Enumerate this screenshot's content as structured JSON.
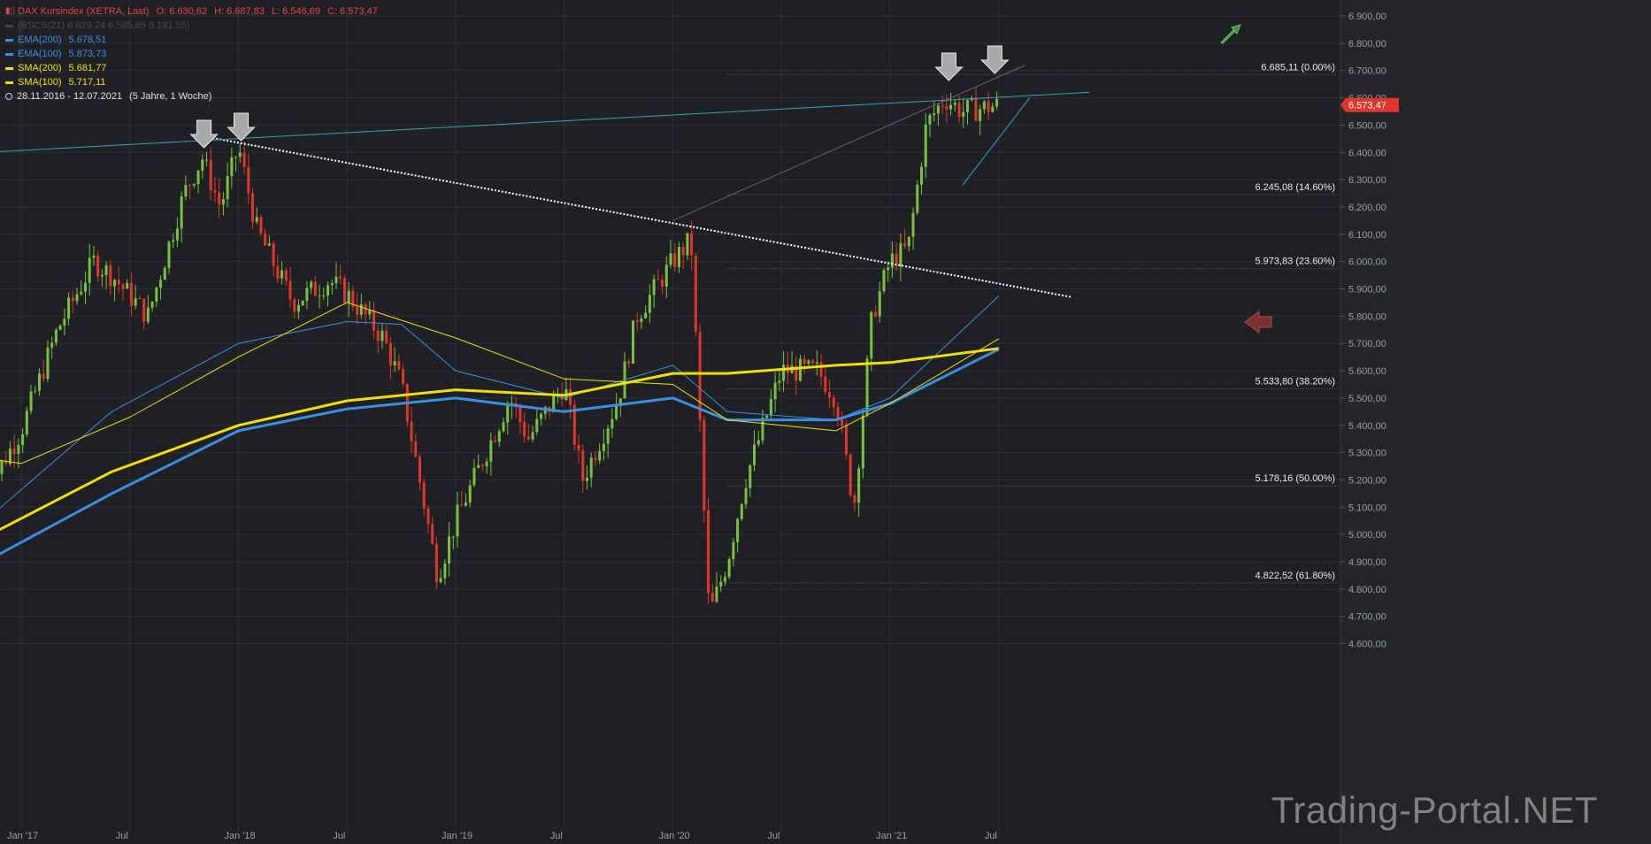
{
  "legend": {
    "instrument": "DAX Kursindex (XETRA, Last)",
    "open": "O: 6.630,62",
    "high": "H: 6.687,83",
    "low": "L: 6.546,69",
    "close": "C: 6.573,47",
    "faded_line": "(BSCS(21) 6.629,24  6.585,65  6.181,55)",
    "indicators": [
      {
        "name": "EMA(200)",
        "value": "5.678,51",
        "color": "#3c8fe0"
      },
      {
        "name": "EMA(100)",
        "value": "5.873,73",
        "color": "#3c8fe0"
      },
      {
        "name": "SMA(200)",
        "value": "5.681,77",
        "color": "#f0e000"
      },
      {
        "name": "SMA(100)",
        "value": "5.717,11",
        "color": "#f0e000"
      }
    ],
    "range": "28.11.2016 - 12.07.2021",
    "period": "(5 Jahre, 1 Woche)"
  },
  "current_price": "6.573,47",
  "watermark": "Trading-Portal.NET",
  "colors": {
    "up": "#7ac142",
    "down": "#e0362c",
    "bg": "#1e2023",
    "grid": "#2c2f33"
  },
  "chart_data": {
    "type": "candlestick",
    "y_axis": {
      "min": 4550,
      "max": 6950,
      "ticks": [
        "6.900,00",
        "6.800,00",
        "6.700,00",
        "6.600,00",
        "6.500,00",
        "6.400,00",
        "6.300,00",
        "6.200,00",
        "6.100,00",
        "6.000,00",
        "5.900,00",
        "5.800,00",
        "5.700,00",
        "5.600,00",
        "5.500,00",
        "5.400,00",
        "5.300,00",
        "5.200,00",
        "5.100,00",
        "5.000,00",
        "4.900,00",
        "4.800,00",
        "4.700,00",
        "4.600,00"
      ],
      "tick_values": [
        6900,
        6800,
        6700,
        6600,
        6500,
        6400,
        6300,
        6200,
        6100,
        6000,
        5900,
        5800,
        5700,
        5600,
        5500,
        5400,
        5300,
        5200,
        5100,
        5000,
        4900,
        4800,
        4700,
        4600
      ]
    },
    "x_axis": {
      "labels": [
        "Jan '17",
        "Jul",
        "Jan '18",
        "Jul",
        "Jan '19",
        "Jul",
        "Jan '20",
        "Jul",
        "Jan '21",
        "Jul"
      ],
      "dates": [
        "2017-01",
        "2017-07",
        "2018-01",
        "2018-07",
        "2019-01",
        "2019-07",
        "2020-01",
        "2020-07",
        "2021-01",
        "2021-07"
      ]
    },
    "fib_levels": [
      {
        "label": "6.685,11 (0.00%)",
        "value": 6685.11
      },
      {
        "label": "6.245,08 (14.60%)",
        "value": 6245.08
      },
      {
        "label": "5.973,83 (23.60%)",
        "value": 5973.83
      },
      {
        "label": "5.533,80 (38.20%)",
        "value": 5533.8
      },
      {
        "label": "5.178,16 (50.00%)",
        "value": 5178.16
      },
      {
        "label": "4.822,52 (61.80%)",
        "value": 4822.52
      }
    ],
    "price_path": [
      [
        "2016-11",
        5150
      ],
      [
        "2017-01",
        5380
      ],
      [
        "2017-03",
        5750
      ],
      [
        "2017-05",
        6000
      ],
      [
        "2017-06",
        5950
      ],
      [
        "2017-08",
        5800
      ],
      [
        "2017-10",
        6250
      ],
      [
        "2017-11",
        6380
      ],
      [
        "2017-12",
        6200
      ],
      [
        "2018-01",
        6420
      ],
      [
        "2018-02",
        6120
      ],
      [
        "2018-04",
        5850
      ],
      [
        "2018-06",
        5930
      ],
      [
        "2018-07",
        5880
      ],
      [
        "2018-09",
        5720
      ],
      [
        "2018-10",
        5550
      ],
      [
        "2018-11",
        5200
      ],
      [
        "2018-12",
        4850
      ],
      [
        "2019-01",
        5050
      ],
      [
        "2019-03",
        5350
      ],
      [
        "2019-04",
        5500
      ],
      [
        "2019-05",
        5350
      ],
      [
        "2019-07",
        5550
      ],
      [
        "2019-08",
        5200
      ],
      [
        "2019-10",
        5500
      ],
      [
        "2019-11",
        5800
      ],
      [
        "2020-01",
        6000
      ],
      [
        "2020-02",
        6080
      ],
      [
        "2020-03",
        4700
      ],
      [
        "2020-04",
        4900
      ],
      [
        "2020-05",
        5200
      ],
      [
        "2020-06",
        5400
      ],
      [
        "2020-07",
        5600
      ],
      [
        "2020-09",
        5600
      ],
      [
        "2020-10",
        5500
      ],
      [
        "2020-11",
        5100
      ],
      [
        "2020-12",
        5800
      ],
      [
        "2021-01",
        6000
      ],
      [
        "2021-02",
        6050
      ],
      [
        "2021-03",
        6500
      ],
      [
        "2021-04",
        6600
      ],
      [
        "2021-05",
        6550
      ],
      [
        "2021-07",
        6573
      ]
    ],
    "series": [
      {
        "name": "EMA(200)",
        "color": "#3c8fe0",
        "width": 3,
        "points": [
          [
            "2016-11",
            4900
          ],
          [
            "2017-06",
            5150
          ],
          [
            "2018-01",
            5380
          ],
          [
            "2018-07",
            5460
          ],
          [
            "2019-01",
            5500
          ],
          [
            "2019-07",
            5450
          ],
          [
            "2020-01",
            5500
          ],
          [
            "2020-04",
            5420
          ],
          [
            "2020-10",
            5420
          ],
          [
            "2021-01",
            5480
          ],
          [
            "2021-07",
            5678.51
          ]
        ]
      },
      {
        "name": "EMA(100)",
        "color": "#3c8fe0",
        "width": 1,
        "points": [
          [
            "2016-11",
            5050
          ],
          [
            "2017-06",
            5450
          ],
          [
            "2018-01",
            5700
          ],
          [
            "2018-07",
            5780
          ],
          [
            "2018-10",
            5770
          ],
          [
            "2019-01",
            5600
          ],
          [
            "2019-07",
            5500
          ],
          [
            "2020-01",
            5620
          ],
          [
            "2020-04",
            5450
          ],
          [
            "2020-10",
            5420
          ],
          [
            "2021-01",
            5500
          ],
          [
            "2021-07",
            5873.73
          ]
        ]
      },
      {
        "name": "SMA(200)",
        "color": "#f0e000",
        "width": 3,
        "points": [
          [
            "2016-11",
            4990
          ],
          [
            "2017-06",
            5230
          ],
          [
            "2018-01",
            5400
          ],
          [
            "2018-07",
            5490
          ],
          [
            "2019-01",
            5530
          ],
          [
            "2019-07",
            5510
          ],
          [
            "2020-01",
            5590
          ],
          [
            "2020-04",
            5590
          ],
          [
            "2020-10",
            5620
          ],
          [
            "2021-01",
            5630
          ],
          [
            "2021-07",
            5681.77
          ]
        ]
      },
      {
        "name": "SMA(100)",
        "color": "#f0e000",
        "width": 1,
        "points": [
          [
            "2016-11",
            5280
          ],
          [
            "2017-01",
            5260
          ],
          [
            "2017-07",
            5430
          ],
          [
            "2018-01",
            5650
          ],
          [
            "2018-07",
            5850
          ],
          [
            "2019-01",
            5720
          ],
          [
            "2019-07",
            5570
          ],
          [
            "2020-01",
            5550
          ],
          [
            "2020-04",
            5420
          ],
          [
            "2020-10",
            5380
          ],
          [
            "2021-01",
            5480
          ],
          [
            "2021-07",
            5717.11
          ]
        ]
      }
    ],
    "trendlines": [
      {
        "style": "dotted-white",
        "from": [
          "2017-11",
          6460
        ],
        "to": [
          "2021-11",
          5870
        ]
      },
      {
        "style": "cyan",
        "from": [
          "2016-11",
          6400
        ],
        "to": [
          "2021-12",
          6620
        ]
      }
    ]
  }
}
